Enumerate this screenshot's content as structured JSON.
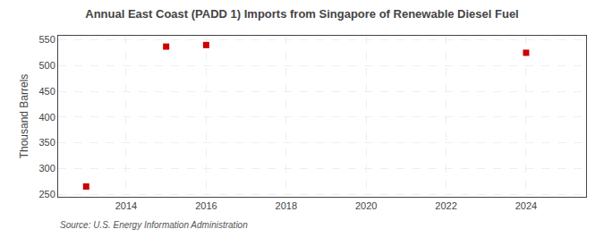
{
  "chart_data": {
    "type": "scatter",
    "title": "Annual East Coast (PADD 1) Imports from Singapore of Renewable Diesel Fuel",
    "ylabel": "Thousand Barrels",
    "source": "Source: U.S. Energy Information Administration",
    "x": [
      2013,
      2015,
      2016,
      2024
    ],
    "values": [
      265,
      537,
      540,
      525
    ],
    "color": "#cc0000",
    "marker": "square",
    "xlim": [
      2012.3,
      2025.5
    ],
    "ylim": [
      245,
      558
    ],
    "xticks": [
      2014,
      2016,
      2018,
      2020,
      2022,
      2024
    ],
    "yticks": [
      250,
      300,
      350,
      400,
      450,
      500,
      550
    ],
    "grid": true
  }
}
